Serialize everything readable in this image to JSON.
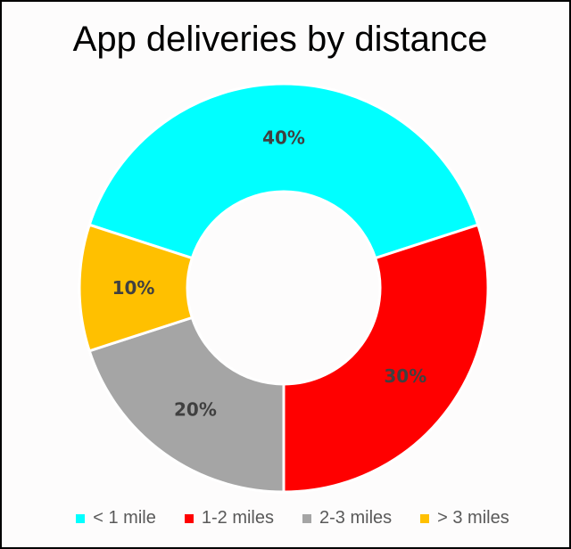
{
  "chart_data": {
    "type": "pie",
    "variant": "donut",
    "title": "App deliveries by distance",
    "categories": [
      "< 1 mile",
      "1-2 miles",
      "2-3 miles",
      "> 3 miles"
    ],
    "values": [
      40,
      30,
      20,
      10
    ],
    "data_labels": [
      "40%",
      "30%",
      "20%",
      "10%"
    ],
    "colors": [
      "#00ffff",
      "#ff0000",
      "#a5a5a5",
      "#ffc000"
    ],
    "legend_position": "bottom"
  }
}
